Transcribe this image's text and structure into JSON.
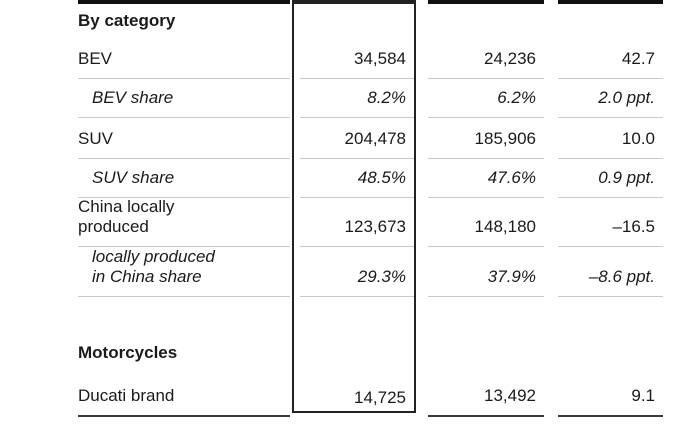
{
  "colors": {
    "text": "#1a1a1a",
    "separator": "#c9c9c9",
    "top_border": "#111111",
    "bottom_border": "#3a3a3a",
    "highlight_box_border": "#222222",
    "background": "#ffffff"
  },
  "table": {
    "rows": [
      {
        "type": "section-header",
        "label": "By category",
        "values": [
          "",
          "",
          ""
        ]
      },
      {
        "type": "data",
        "label": "BEV",
        "values": [
          "34,584",
          "24,236",
          "42.7"
        ]
      },
      {
        "type": "share",
        "label": "BEV share",
        "values": [
          "8.2%",
          "6.2%",
          "2.0 ppt."
        ]
      },
      {
        "type": "data",
        "label": "SUV",
        "values": [
          "204,478",
          "185,906",
          "10.0"
        ]
      },
      {
        "type": "share",
        "label": "SUV share",
        "values": [
          "48.5%",
          "47.6%",
          "0.9 ppt."
        ]
      },
      {
        "type": "data",
        "label": "China locally\nproduced",
        "values": [
          "123,673",
          "148,180",
          "–16.5"
        ]
      },
      {
        "type": "share",
        "label": "locally produced\nin China share",
        "values": [
          "29.3%",
          "37.9%",
          "–8.6 ppt."
        ]
      },
      {
        "type": "empty",
        "label": "",
        "values": [
          "",
          "",
          ""
        ]
      },
      {
        "type": "section-header",
        "label": "Motorcycles",
        "values": [
          "",
          "",
          ""
        ]
      },
      {
        "type": "data",
        "label": "Ducati brand",
        "values": [
          "14,725",
          "13,492",
          "9.1"
        ]
      }
    ]
  }
}
